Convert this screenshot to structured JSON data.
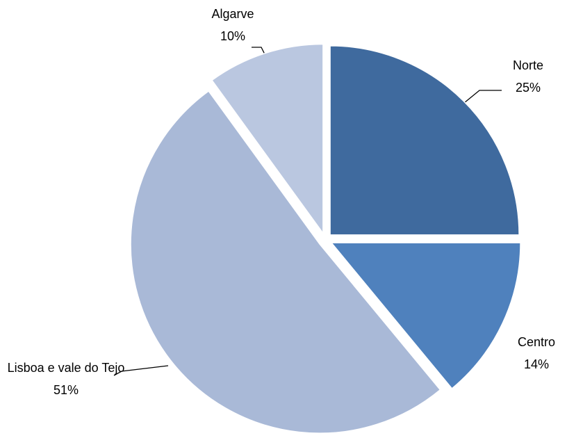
{
  "chart_data": {
    "type": "pie",
    "categories": [
      "Norte",
      "Centro",
      "Lisboa e vale do Tejo",
      "Algarve"
    ],
    "values": [
      25,
      14,
      51,
      10
    ],
    "value_labels": [
      "25%",
      "14%",
      "51%",
      "10%"
    ],
    "colors": [
      "#3f6a9e",
      "#4f81bd",
      "#a9b9d7",
      "#bac7e0"
    ],
    "legend": false
  }
}
